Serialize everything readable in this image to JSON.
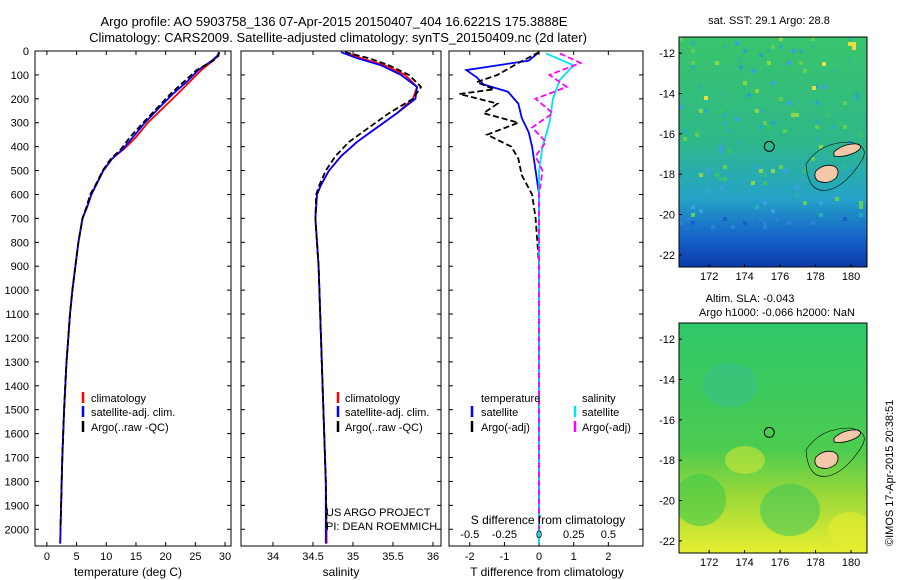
{
  "header": {
    "line1": "Argo profile: AO 5903758_136 07-Apr-2015 20150407_404 16.6221S 175.3888E",
    "line2": "Climatology: CARS2009. Satellite-adjusted climatology: synTS_20150409.nc (2d later)"
  },
  "colors": {
    "climatology": "#ff0000",
    "satellite": "#0000ff",
    "argo": "#000000",
    "sal_satellite": "#00e5ee",
    "sal_argo": "#ff00ff"
  },
  "credits": {
    "project": "US ARGO PROJECT",
    "pi": "PI: DEAN ROEMMICH"
  },
  "watermark": "©IMOS 17-Apr-2015 20:38:51",
  "chart_data": [
    {
      "id": "temperature",
      "type": "line",
      "xlabel": "temperature (deg C)",
      "xlim": [
        -2,
        31
      ],
      "xticks": [
        0,
        5,
        10,
        15,
        20,
        25,
        30
      ],
      "ylim": [
        2070,
        0
      ],
      "yticks": [
        0,
        100,
        200,
        300,
        400,
        500,
        600,
        700,
        800,
        900,
        1000,
        1100,
        1200,
        1300,
        1400,
        1500,
        1600,
        1700,
        1800,
        1900,
        2000
      ],
      "legend": [
        "climatology",
        "satellite-adj. clim.",
        "Argo(..raw -QC)"
      ],
      "series": [
        {
          "name": "climatology",
          "color": "#ff0000",
          "points": [
            [
              29,
              5
            ],
            [
              28.8,
              20
            ],
            [
              28,
              40
            ],
            [
              26,
              80
            ],
            [
              24,
              130
            ],
            [
              22,
              180
            ],
            [
              19.5,
              240
            ],
            [
              17,
              300
            ],
            [
              15,
              360
            ],
            [
              13,
              410
            ],
            [
              11,
              450
            ],
            [
              9.5,
              500
            ],
            [
              8.3,
              560
            ],
            [
              7.5,
              600
            ],
            [
              6.8,
              650
            ],
            [
              6,
              700
            ],
            [
              5.3,
              800
            ],
            [
              4.8,
              900
            ],
            [
              4.3,
              1000
            ],
            [
              3.9,
              1100
            ],
            [
              3.6,
              1200
            ],
            [
              3.3,
              1300
            ],
            [
              3.1,
              1400
            ],
            [
              2.9,
              1500
            ],
            [
              2.75,
              1600
            ],
            [
              2.6,
              1700
            ],
            [
              2.5,
              1800
            ],
            [
              2.4,
              1900
            ],
            [
              2.3,
              2000
            ],
            [
              2.25,
              2060
            ]
          ]
        },
        {
          "name": "satellite-adj. clim.",
          "color": "#0000ff",
          "points": [
            [
              29,
              5
            ],
            [
              28.7,
              20
            ],
            [
              27.8,
              40
            ],
            [
              25.5,
              80
            ],
            [
              23.5,
              130
            ],
            [
              21.2,
              180
            ],
            [
              18.8,
              240
            ],
            [
              16.5,
              300
            ],
            [
              14.5,
              360
            ],
            [
              12.8,
              410
            ],
            [
              11,
              450
            ],
            [
              9.5,
              500
            ],
            [
              8.3,
              560
            ],
            [
              7.5,
              600
            ],
            [
              6.8,
              650
            ],
            [
              6,
              700
            ],
            [
              5.3,
              800
            ],
            [
              4.8,
              900
            ],
            [
              4.3,
              1000
            ],
            [
              3.9,
              1100
            ],
            [
              3.6,
              1200
            ],
            [
              3.3,
              1300
            ],
            [
              3.1,
              1400
            ],
            [
              2.9,
              1500
            ],
            [
              2.75,
              1600
            ],
            [
              2.6,
              1700
            ],
            [
              2.5,
              1800
            ],
            [
              2.4,
              1900
            ],
            [
              2.3,
              2000
            ],
            [
              2.25,
              2060
            ]
          ]
        },
        {
          "name": "Argo(..raw -QC)",
          "color": "#000000",
          "dashed": true,
          "points": [
            [
              29,
              5
            ],
            [
              28.9,
              20
            ],
            [
              28,
              40
            ],
            [
              25.2,
              80
            ],
            [
              23,
              130
            ],
            [
              20.8,
              180
            ],
            [
              18.5,
              240
            ],
            [
              16.2,
              300
            ],
            [
              14,
              360
            ],
            [
              12.5,
              410
            ],
            [
              10.8,
              450
            ],
            [
              9.4,
              500
            ],
            [
              8.2,
              560
            ],
            [
              7.3,
              600
            ],
            [
              6.7,
              650
            ],
            [
              6,
              700
            ],
            [
              5.3,
              800
            ],
            [
              4.8,
              900
            ],
            [
              4.3,
              1000
            ],
            [
              3.9,
              1100
            ],
            [
              3.6,
              1200
            ],
            [
              3.3,
              1300
            ],
            [
              3.1,
              1400
            ],
            [
              2.9,
              1500
            ],
            [
              2.75,
              1600
            ],
            [
              2.6,
              1700
            ],
            [
              2.5,
              1800
            ],
            [
              2.4,
              1900
            ],
            [
              2.3,
              2000
            ]
          ]
        }
      ]
    },
    {
      "id": "salinity",
      "type": "line",
      "xlabel": "salinity",
      "xlim": [
        33.6,
        36.1
      ],
      "xticks": [
        34,
        34.5,
        35,
        35.5,
        36
      ],
      "ylim": [
        2070,
        0
      ],
      "legend": [
        "climatology",
        "satellite-adj. clim.",
        "Argo(..raw -QC)"
      ],
      "series": [
        {
          "name": "climatology",
          "color": "#ff0000",
          "points": [
            [
              34.9,
              5
            ],
            [
              35.1,
              30
            ],
            [
              35.4,
              60
            ],
            [
              35.65,
              100
            ],
            [
              35.8,
              150
            ],
            [
              35.75,
              200
            ],
            [
              35.55,
              260
            ],
            [
              35.3,
              320
            ],
            [
              35.05,
              380
            ],
            [
              34.85,
              440
            ],
            [
              34.7,
              500
            ],
            [
              34.6,
              560
            ],
            [
              34.55,
              600
            ],
            [
              34.53,
              700
            ],
            [
              34.55,
              800
            ],
            [
              34.57,
              900
            ],
            [
              34.58,
              1000
            ],
            [
              34.6,
              1200
            ],
            [
              34.62,
              1400
            ],
            [
              34.64,
              1600
            ],
            [
              34.66,
              1800
            ],
            [
              34.67,
              2000
            ],
            [
              34.67,
              2060
            ]
          ]
        },
        {
          "name": "satellite-adj. clim.",
          "color": "#0000ff",
          "points": [
            [
              34.85,
              5
            ],
            [
              35.05,
              30
            ],
            [
              35.35,
              60
            ],
            [
              35.6,
              100
            ],
            [
              35.8,
              150
            ],
            [
              35.78,
              200
            ],
            [
              35.55,
              260
            ],
            [
              35.3,
              320
            ],
            [
              35.05,
              380
            ],
            [
              34.85,
              440
            ],
            [
              34.7,
              500
            ],
            [
              34.6,
              560
            ],
            [
              34.55,
              600
            ],
            [
              34.53,
              700
            ],
            [
              34.55,
              800
            ],
            [
              34.57,
              900
            ],
            [
              34.58,
              1000
            ],
            [
              34.6,
              1200
            ],
            [
              34.62,
              1400
            ],
            [
              34.64,
              1600
            ],
            [
              34.66,
              1800
            ],
            [
              34.66,
              2000
            ],
            [
              34.66,
              2060
            ]
          ]
        },
        {
          "name": "Argo(..raw -QC)",
          "color": "#000000",
          "dashed": true,
          "points": [
            [
              34.9,
              5
            ],
            [
              35.2,
              30
            ],
            [
              35.45,
              60
            ],
            [
              35.7,
              100
            ],
            [
              35.85,
              150
            ],
            [
              35.75,
              200
            ],
            [
              35.45,
              260
            ],
            [
              35.2,
              320
            ],
            [
              34.95,
              380
            ],
            [
              34.78,
              440
            ],
            [
              34.66,
              500
            ],
            [
              34.58,
              560
            ],
            [
              34.54,
              600
            ],
            [
              34.53,
              700
            ],
            [
              34.55,
              800
            ],
            [
              34.57,
              900
            ],
            [
              34.58,
              1000
            ],
            [
              34.6,
              1200
            ],
            [
              34.62,
              1400
            ],
            [
              34.64,
              1600
            ],
            [
              34.66,
              1800
            ],
            [
              34.67,
              2000
            ]
          ]
        }
      ]
    },
    {
      "id": "difference",
      "type": "line",
      "xlabel": "T difference from climatology",
      "xlabel_top": "S difference from climatology",
      "xlim": [
        -2.6,
        3
      ],
      "xticks": [
        -2,
        -1,
        0,
        1,
        2
      ],
      "xticks_s": [
        "-0.5",
        "-0.25",
        "0",
        "0.25",
        "0.5"
      ],
      "ylim": [
        2070,
        0
      ],
      "legend_titles": [
        "temperature",
        "salinity"
      ],
      "legend": [
        "satellite",
        "Argo(-adj)",
        "satellite",
        "Argo(-adj)"
      ],
      "series": [
        {
          "name": "T satellite",
          "color": "#0000ff",
          "points": [
            [
              0,
              5
            ],
            [
              -0.3,
              40
            ],
            [
              -2.1,
              80
            ],
            [
              -1.8,
              110
            ],
            [
              -1.6,
              140
            ],
            [
              -0.9,
              170
            ],
            [
              -0.6,
              220
            ],
            [
              -0.5,
              280
            ],
            [
              -0.3,
              340
            ],
            [
              -0.2,
              400
            ],
            [
              -0.1,
              500
            ],
            [
              0,
              600
            ],
            [
              0,
              800
            ],
            [
              0,
              1200
            ],
            [
              0,
              1600
            ],
            [
              0,
              2060
            ]
          ]
        },
        {
          "name": "T Argo(-adj)",
          "color": "#000000",
          "dashed": true,
          "points": [
            [
              0,
              5
            ],
            [
              -0.6,
              50
            ],
            [
              -1.2,
              100
            ],
            [
              -1.8,
              130
            ],
            [
              -1.3,
              160
            ],
            [
              -2.3,
              180
            ],
            [
              -1.2,
              220
            ],
            [
              -1.6,
              260
            ],
            [
              -0.6,
              300
            ],
            [
              -1.5,
              350
            ],
            [
              -0.8,
              400
            ],
            [
              -0.6,
              450
            ],
            [
              -0.5,
              520
            ],
            [
              -0.2,
              600
            ],
            [
              -0.1,
              700
            ],
            [
              0,
              900
            ],
            [
              0,
              1200
            ],
            [
              0,
              1600
            ],
            [
              0,
              2000
            ]
          ]
        },
        {
          "name": "S satellite",
          "color": "#00e5ee",
          "points": [
            [
              0.2,
              10
            ],
            [
              1.0,
              60
            ],
            [
              0.6,
              120
            ],
            [
              0.4,
              200
            ],
            [
              0.3,
              300
            ],
            [
              0.1,
              400
            ],
            [
              0,
              500
            ],
            [
              0,
              800
            ],
            [
              0,
              1200
            ],
            [
              0,
              1600
            ],
            [
              0,
              2060
            ]
          ]
        },
        {
          "name": "S Argo(-adj)",
          "color": "#ff00ff",
          "dashed": true,
          "points": [
            [
              0.6,
              10
            ],
            [
              1.2,
              50
            ],
            [
              0.3,
              100
            ],
            [
              0.8,
              150
            ],
            [
              -0.1,
              200
            ],
            [
              0.4,
              260
            ],
            [
              -0.2,
              320
            ],
            [
              0.2,
              380
            ],
            [
              -0.1,
              440
            ],
            [
              0.1,
              500
            ],
            [
              0,
              600
            ],
            [
              0,
              800
            ],
            [
              0,
              1200
            ],
            [
              0,
              1600
            ],
            [
              0,
              2000
            ]
          ]
        }
      ]
    },
    {
      "id": "sst_map",
      "type": "heatmap",
      "title": "sat. SST: 29.1  Argo: 28.8",
      "xlim": [
        170.3,
        180.9
      ],
      "ylim": [
        -22.6,
        -11.2
      ],
      "xticks": [
        172,
        174,
        176,
        178,
        180
      ],
      "yticks": [
        -12,
        -14,
        -16,
        -18,
        -20,
        -22
      ],
      "marker": {
        "lon": 175.3888,
        "lat": -16.6221
      }
    },
    {
      "id": "sla_map",
      "type": "heatmap",
      "title_line1": "Altim. SLA: -0.043",
      "title_line2": "Argo h1000: -0.066  h2000: NaN",
      "xlim": [
        170.3,
        180.9
      ],
      "ylim": [
        -22.6,
        -11.2
      ],
      "xticks": [
        172,
        174,
        176,
        178,
        180
      ],
      "yticks": [
        -12,
        -14,
        -16,
        -18,
        -20,
        -22
      ],
      "marker": {
        "lon": 175.3888,
        "lat": -16.6221
      }
    }
  ]
}
